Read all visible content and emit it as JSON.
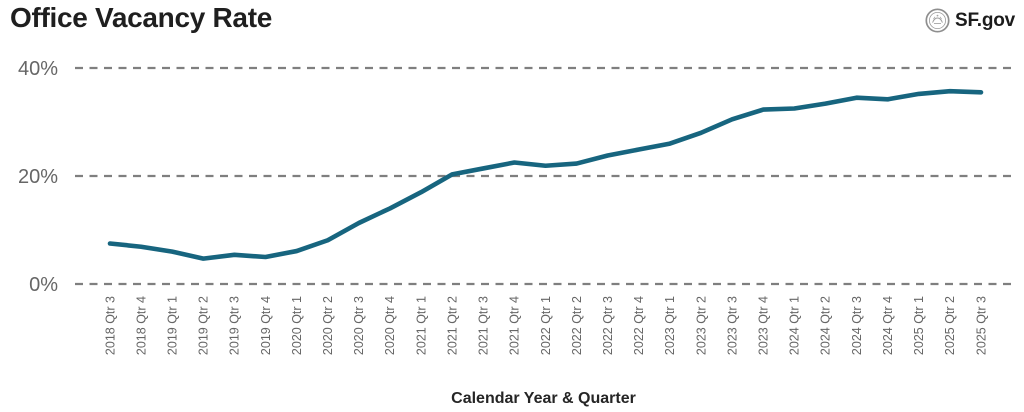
{
  "header": {
    "title": "Office Vacancy Rate",
    "logo_text": "SF.gov"
  },
  "chart_data": {
    "type": "line",
    "title": "Office Vacancy Rate",
    "xlabel": "Calendar Year & Quarter",
    "ylabel": "",
    "ylim": [
      0,
      40
    ],
    "grid": "horizontal-dashed",
    "legend": "none",
    "yticks": [
      {
        "value": 0,
        "label": "0%"
      },
      {
        "value": 20,
        "label": "20%"
      },
      {
        "value": 40,
        "label": "40%"
      }
    ],
    "categories": [
      "2018 Qtr 3",
      "2018 Qtr 4",
      "2019 Qtr 1",
      "2019 Qtr 2",
      "2019 Qtr 3",
      "2019 Qtr 4",
      "2020 Qtr 1",
      "2020 Qtr 2",
      "2020 Qtr 3",
      "2020 Qtr 4",
      "2021 Qtr 1",
      "2021 Qtr 2",
      "2021 Qtr 3",
      "2021 Qtr 4",
      "2022 Qtr 1",
      "2022 Qtr 2",
      "2022 Qtr 3",
      "2022 Qtr 4",
      "2023 Qtr 1",
      "2023 Qtr 2",
      "2023 Qtr 3",
      "2023 Qtr 4",
      "2024 Qtr 1",
      "2024 Qtr 2",
      "2024 Qtr 3",
      "2024 Qtr 4",
      "2025 Qtr 1",
      "2025 Qtr 2",
      "2025 Qtr 3"
    ],
    "series": [
      {
        "name": "Office Vacancy Rate",
        "values": [
          7.5,
          6.9,
          6.0,
          4.7,
          5.4,
          5.0,
          6.1,
          8.1,
          11.3,
          14.0,
          17.0,
          20.3,
          21.4,
          22.5,
          21.9,
          22.3,
          23.8,
          24.9,
          26.0,
          28.0,
          30.5,
          32.3,
          32.5,
          33.4,
          34.5,
          34.2,
          35.2,
          35.7,
          35.5
        ]
      }
    ]
  },
  "colors": {
    "line": "#17657F",
    "gridline": "#7f7f7f",
    "tick_label": "#666666",
    "title": "#1f1f1f",
    "axis_title": "#252525",
    "seal": "#8e8e8e"
  }
}
